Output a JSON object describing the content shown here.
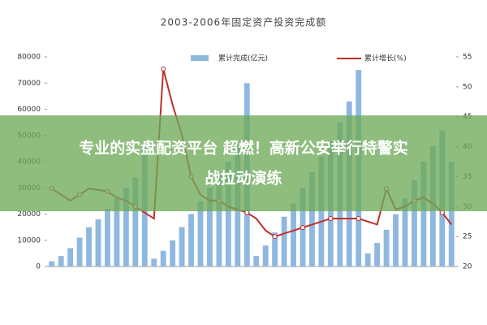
{
  "chart_data": {
    "type": "bar_line",
    "title": "2003-2006年固定资产投资完成额",
    "categories": [
      null,
      null,
      null,
      null,
      null,
      null,
      null,
      null,
      null,
      null,
      null,
      null,
      null,
      null,
      null,
      null,
      null,
      null,
      null,
      null,
      null,
      null,
      null,
      null,
      null,
      null,
      null,
      null,
      null,
      null,
      null,
      null,
      null,
      null,
      null,
      null,
      null,
      null,
      null,
      null,
      null,
      null,
      null,
      null
    ],
    "series": [
      {
        "name": "累计完成(亿元)",
        "color": "#8fb8e0",
        "values": [
          2000,
          4000,
          7000,
          11000,
          15000,
          18000,
          22000,
          26000,
          30000,
          34000,
          45000,
          3000,
          6000,
          10000,
          15000,
          20000,
          25000,
          30000,
          35000,
          40000,
          47000,
          70000,
          4000,
          8000,
          13000,
          19000,
          24000,
          30000,
          36000,
          42000,
          48000,
          55000,
          63000,
          75000,
          5000,
          9000,
          14000,
          20000,
          26000,
          33000,
          40000,
          46000,
          52000,
          40000
        ]
      },
      {
        "name": "累计增长(%)",
        "color": "#c0302a",
        "axis": "y2",
        "values": [
          33,
          32,
          31,
          32,
          33,
          32.8,
          32.5,
          31.5,
          31,
          30,
          29,
          28,
          53,
          47,
          42,
          35,
          32,
          31,
          31,
          30,
          29.5,
          29,
          28,
          26,
          25,
          25.5,
          26,
          26.5,
          27,
          27.5,
          28,
          28,
          28,
          28,
          27.5,
          27,
          33,
          29.5,
          30,
          31,
          31.5,
          30.5,
          29,
          27
        ]
      }
    ],
    "ylim": [
      0,
      80000
    ],
    "yticks": [
      0,
      10000,
      20000,
      30000,
      40000,
      50000,
      60000,
      70000,
      80000
    ],
    "y2lim": [
      20,
      55
    ],
    "y2ticks": [
      20,
      25,
      30,
      35,
      40,
      45,
      50,
      55
    ]
  },
  "banner": {
    "lines": [
      "专业的实盘配资平台 超燃！高新公安举行特警实",
      "战拉动演练"
    ]
  }
}
